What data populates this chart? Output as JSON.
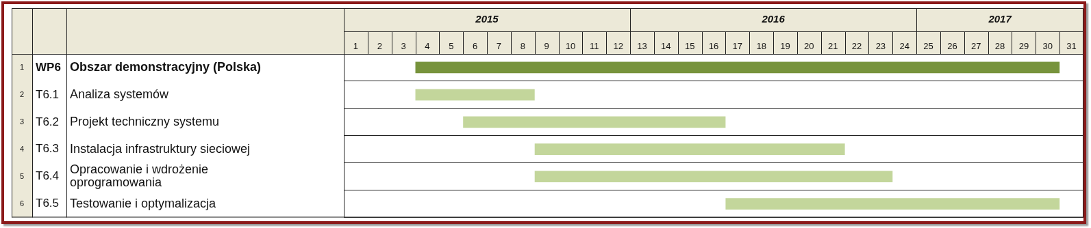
{
  "chart_data": {
    "type": "bar",
    "orientation": "horizontal",
    "categories": [
      "Obszar demonstracyjny (Polska)",
      "Analiza systemów",
      "Projekt techniczny systemu",
      "Instalacja infrastruktury sieciowej",
      "Opracowanie i wdrożenie\noprogramowania",
      "Testowanie i optymalizacja"
    ],
    "base": [
      3.5,
      3.5,
      5.5,
      8.5,
      8.5,
      16.5
    ],
    "values": [
      27,
      5,
      11,
      13,
      15,
      14
    ],
    "colors": [
      "#77933c",
      "#c3d69b",
      "#c3d69b",
      "#c3d69b",
      "#c3d69b",
      "#c3d69b"
    ],
    "xlim": [
      0.5,
      31.5
    ],
    "xticks": [
      1,
      2,
      3,
      4,
      5,
      6,
      7,
      8,
      9,
      10,
      11,
      12,
      13,
      14,
      15,
      16,
      17,
      18,
      19,
      20,
      21,
      22,
      23,
      24,
      25,
      26,
      27,
      28,
      29,
      30,
      31
    ],
    "annotations": [
      "2015",
      "2016",
      "2017",
      "1",
      "WP6",
      "2",
      "T6.1",
      "3",
      "T6.2",
      "4",
      "T6.3",
      "5",
      "T6.4",
      "6",
      "T6.5"
    ],
    "grid": "y",
    "legend": false
  }
}
